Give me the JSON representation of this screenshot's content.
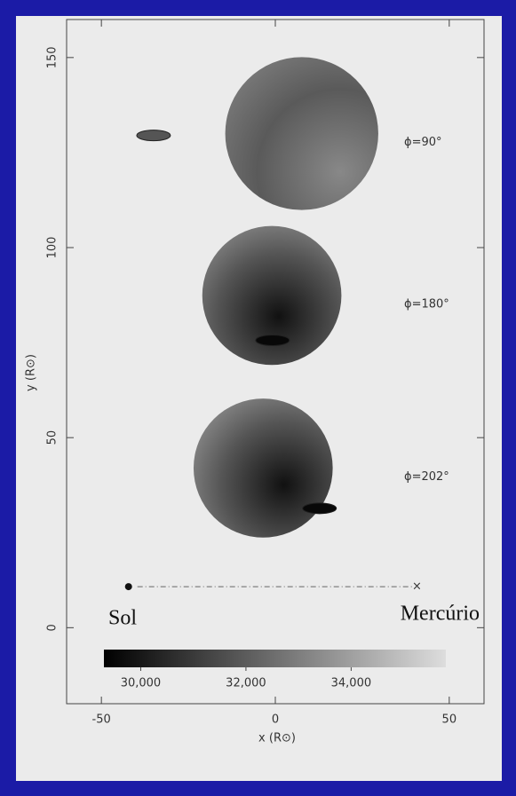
{
  "chart_data": {
    "type": "spheres",
    "xlabel": "x (R⊙)",
    "ylabel": "y (R⊙)",
    "xlim": [
      -60,
      60
    ],
    "ylim": [
      -20,
      160
    ],
    "xticks": [
      -50,
      0,
      50
    ],
    "yticks": [
      0,
      50,
      100,
      150
    ],
    "spheres": {
      "x": [
        7.6,
        -1,
        -3.5
      ],
      "y": [
        130,
        87.4,
        42
      ],
      "radius": [
        22,
        20,
        20
      ]
    },
    "disks": {
      "x": [
        -35,
        -0.8,
        12.7
      ],
      "y": [
        129.5,
        75.6,
        31.4
      ]
    },
    "phase_labels": [
      "ϕ=90°",
      "ϕ=180°",
      "ϕ=202°"
    ],
    "sol": {
      "label": "Sol",
      "x": -42.2,
      "y": 10.8
    },
    "mercury": {
      "label": "Mercúrio",
      "x": 40.7,
      "y": 10.8
    },
    "colorbar": {
      "lim": [
        29300,
        35800
      ],
      "ticks": [
        {
          "value": 30000,
          "label": "30,000"
        },
        {
          "value": 32000,
          "label": "32,000"
        },
        {
          "value": 34000,
          "label": "34,000"
        }
      ]
    }
  }
}
